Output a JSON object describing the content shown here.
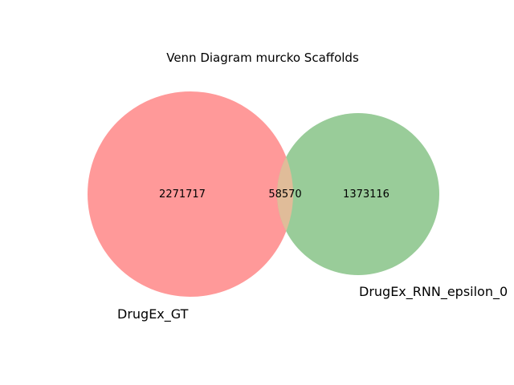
{
  "title": "Venn Diagram murcko Scaffolds",
  "sets": [
    {
      "name": "DrugEx_GT",
      "color": "#ff9999",
      "only_count": "2271717"
    },
    {
      "name": "DrugEx_RNN_epsilon_0",
      "color": "#99cc99",
      "only_count": "1373116"
    }
  ],
  "intersection": {
    "count": "58570",
    "color": "#e0bc99"
  }
}
